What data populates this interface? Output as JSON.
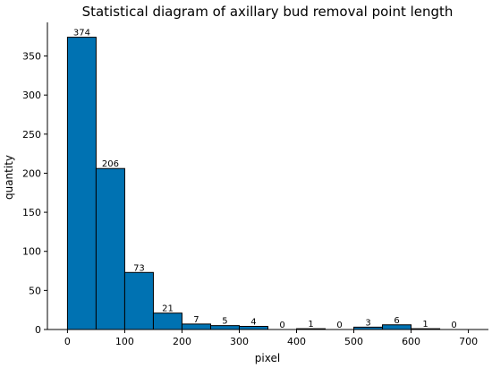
{
  "chart_data": {
    "type": "bar",
    "title": "Statistical diagram of axillary bud removal point length",
    "xlabel": "pixel",
    "ylabel": "quantity",
    "bin_edges": [
      0,
      50,
      100,
      150,
      200,
      250,
      300,
      350,
      400,
      450,
      500,
      550,
      600,
      650,
      700
    ],
    "values": [
      374,
      206,
      73,
      21,
      7,
      5,
      4,
      0,
      1,
      0,
      3,
      6,
      1,
      0
    ],
    "xlim": [
      -35,
      735
    ],
    "ylim": [
      0,
      393
    ],
    "xticks": [
      0,
      100,
      200,
      300,
      400,
      500,
      600,
      700
    ],
    "yticks": [
      0,
      50,
      100,
      150,
      200,
      250,
      300,
      350
    ],
    "bar_color": "#0072b2",
    "bar_edge_color": "#000000",
    "grid": false,
    "show_data_labels": true
  }
}
